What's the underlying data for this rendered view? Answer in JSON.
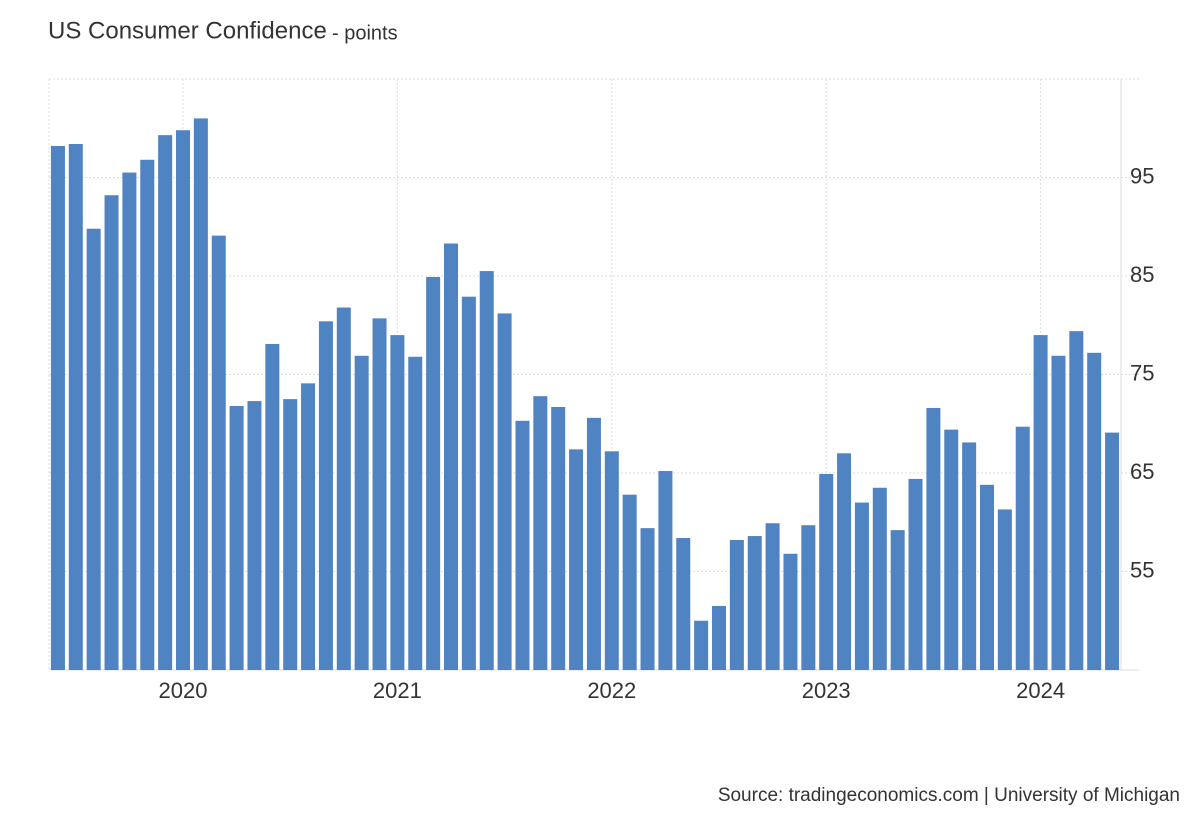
{
  "chart_data": {
    "type": "bar",
    "title": "US Consumer Confidence",
    "subtitle": "- points",
    "source": "Source: tradingeconomics.com | University of Michigan",
    "categories": [
      null,
      null,
      null,
      null,
      null,
      null,
      null,
      "2020",
      null,
      null,
      null,
      null,
      null,
      null,
      null,
      null,
      null,
      null,
      null,
      "2021",
      null,
      null,
      null,
      null,
      null,
      null,
      null,
      null,
      null,
      null,
      null,
      "2022",
      null,
      null,
      null,
      null,
      null,
      null,
      null,
      null,
      null,
      null,
      null,
      "2023",
      null,
      null,
      null,
      null,
      null,
      null,
      null,
      null,
      null,
      null,
      null,
      "2024",
      null,
      null,
      null,
      null
    ],
    "values": [
      98.2,
      98.4,
      89.8,
      93.2,
      95.5,
      96.8,
      99.3,
      99.8,
      101.0,
      89.1,
      71.8,
      72.3,
      78.1,
      72.5,
      74.1,
      80.4,
      81.8,
      76.9,
      80.7,
      79.0,
      76.8,
      84.9,
      88.3,
      82.9,
      85.5,
      81.2,
      70.3,
      72.8,
      71.7,
      67.4,
      70.6,
      67.2,
      62.8,
      59.4,
      65.2,
      58.4,
      50.0,
      51.5,
      58.2,
      58.6,
      59.9,
      56.8,
      59.7,
      64.9,
      67.0,
      62.0,
      63.5,
      59.2,
      64.4,
      71.6,
      69.4,
      68.1,
      63.8,
      61.3,
      69.7,
      79.0,
      76.9,
      79.4,
      77.2,
      69.1
    ],
    "color": "#5083c1",
    "ylim": [
      45,
      105
    ],
    "yticks": [
      55,
      65,
      75,
      85,
      95
    ],
    "grid": true
  }
}
